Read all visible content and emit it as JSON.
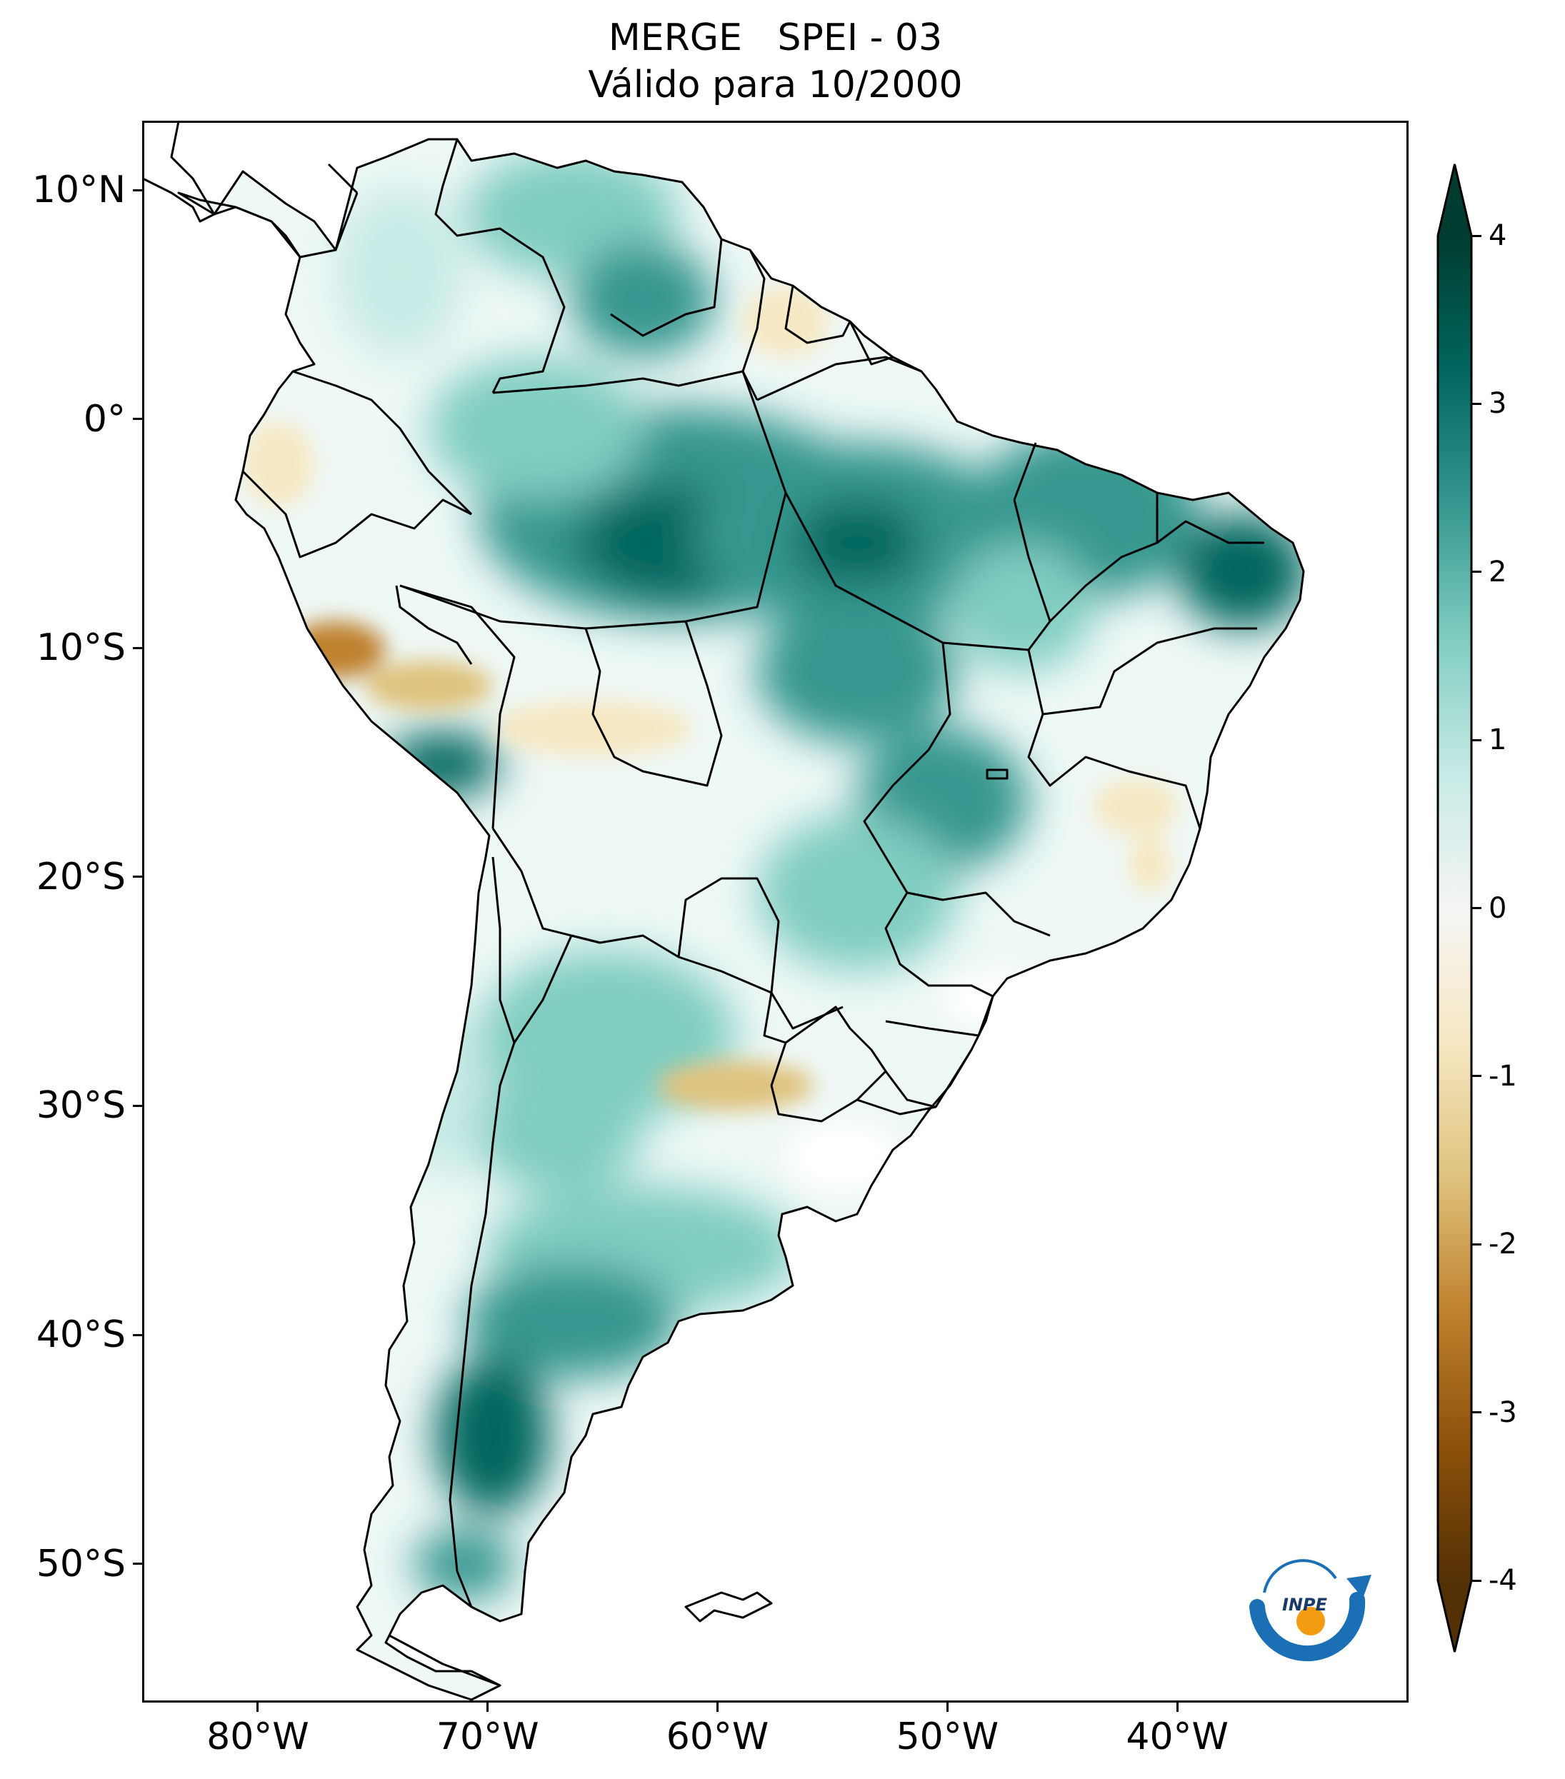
{
  "title": {
    "line1": "MERGE   SPEI - 03",
    "line2": "Válido para 10/2000"
  },
  "map": {
    "region": "South America",
    "lon_range": [
      -85,
      -30
    ],
    "lat_range": [
      -56,
      13
    ],
    "y_ticks": [
      {
        "lat": 10,
        "label": "10°N"
      },
      {
        "lat": 0,
        "label": "0°"
      },
      {
        "lat": -10,
        "label": "10°S"
      },
      {
        "lat": -20,
        "label": "20°S"
      },
      {
        "lat": -30,
        "label": "30°S"
      },
      {
        "lat": -40,
        "label": "40°S"
      },
      {
        "lat": -50,
        "label": "50°S"
      }
    ],
    "x_ticks": [
      {
        "lon": -80,
        "label": "80°W"
      },
      {
        "lon": -70,
        "label": "70°W"
      },
      {
        "lon": -60,
        "label": "60°W"
      },
      {
        "lon": -50,
        "label": "50°W"
      },
      {
        "lon": -40,
        "label": "40°W"
      }
    ],
    "field_colors": {
      "wet_dark": "#01665e",
      "wet_mid": "#5ab4ac",
      "wet_light": "#c7eae5",
      "neutral": "#f5f5f5",
      "dry_light": "#f6e8c3",
      "dry_mid": "#d8b365",
      "dry_dark": "#8c510a",
      "border": "#000000"
    }
  },
  "colorbar": {
    "range": [
      -4,
      4
    ],
    "extend": "both",
    "ticks": [
      {
        "value": 4,
        "label": "4"
      },
      {
        "value": 3,
        "label": "3"
      },
      {
        "value": 2,
        "label": "2"
      },
      {
        "value": 1,
        "label": "1"
      },
      {
        "value": 0,
        "label": "0"
      },
      {
        "value": -1,
        "label": "-1"
      },
      {
        "value": -2,
        "label": "-2"
      },
      {
        "value": -3,
        "label": "-3"
      },
      {
        "value": -4,
        "label": "-4"
      }
    ],
    "colormap": "BrBG",
    "stops": [
      "#543005",
      "#8c510a",
      "#bf812d",
      "#dfc27d",
      "#f6e8c3",
      "#f5f5f5",
      "#c7eae5",
      "#80cdc1",
      "#35978f",
      "#01665e",
      "#003c30"
    ]
  },
  "logo": {
    "text": "INPE",
    "color_blue": "#1a6fb5",
    "color_orange": "#f39c12"
  }
}
